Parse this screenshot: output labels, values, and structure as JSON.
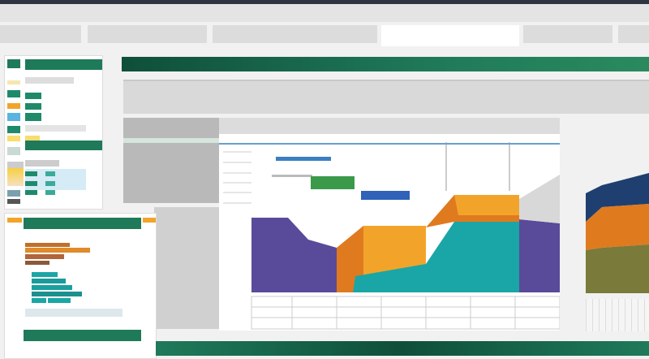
{
  "colors": {
    "brand_green": "#1f7a5a",
    "dark_green": "#0f4f3a",
    "purple": "#5a4a9a",
    "orange": "#e07a1f",
    "amber": "#f2a42a",
    "teal": "#1aa6a6",
    "navy": "#1f3f70",
    "olive": "#7a7a3a",
    "gantt_blue": "#3a7fc0",
    "gantt_green": "#3a9a4a",
    "gantt_dark_blue": "#2f62b8"
  },
  "icons": [
    "chart-icon",
    "table-icon"
  ]
}
